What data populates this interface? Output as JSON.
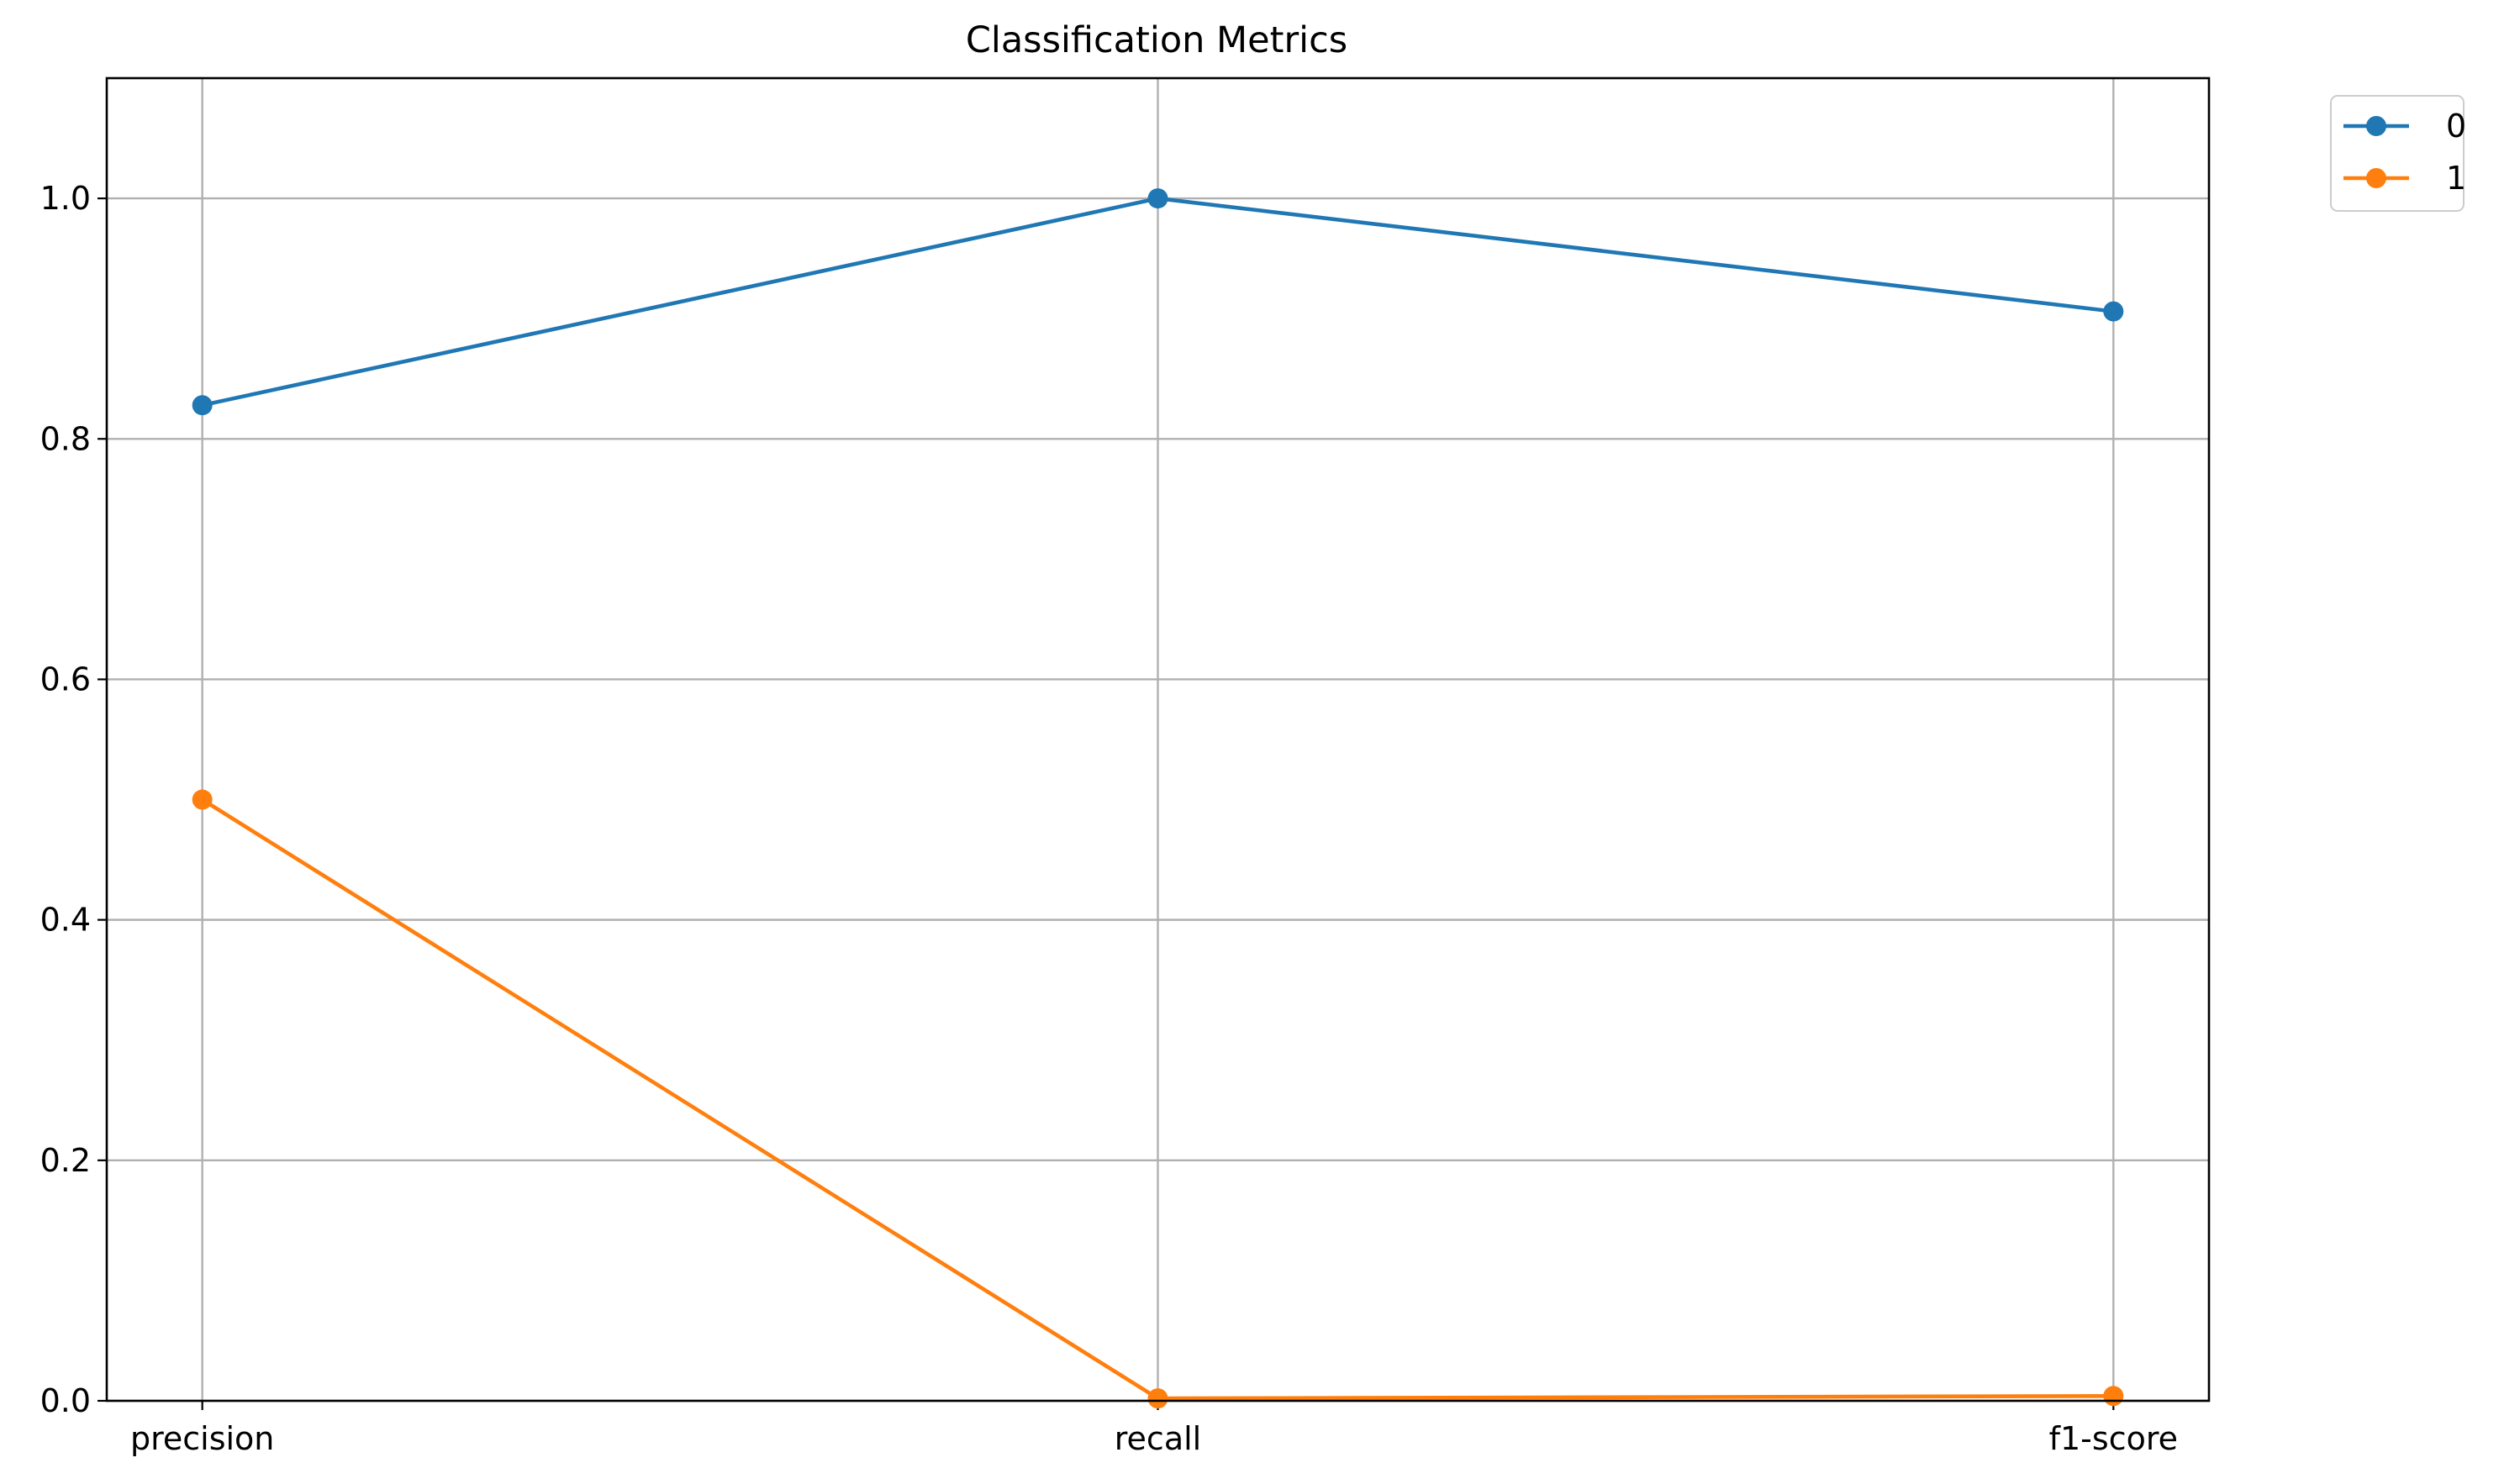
{
  "chart_data": {
    "type": "line",
    "title": "Classification Metrics",
    "xlabel": "",
    "ylabel": "",
    "categories": [
      "precision",
      "recall",
      "f1-score"
    ],
    "ylim": [
      0,
      1.1
    ],
    "yticks": [
      0.0,
      0.2,
      0.4,
      0.6,
      0.8,
      1.0
    ],
    "ytick_labels": [
      "0.0",
      "0.2",
      "0.4",
      "0.6",
      "0.8",
      "1.0"
    ],
    "grid": true,
    "legend_position": "outside top-right",
    "marker": "circle",
    "series": [
      {
        "name": "0",
        "color": "#1f77b4",
        "values": [
          0.828,
          1.0,
          0.906
        ]
      },
      {
        "name": "1",
        "color": "#ff7f0e",
        "values": [
          0.5,
          0.002,
          0.004
        ]
      }
    ]
  }
}
